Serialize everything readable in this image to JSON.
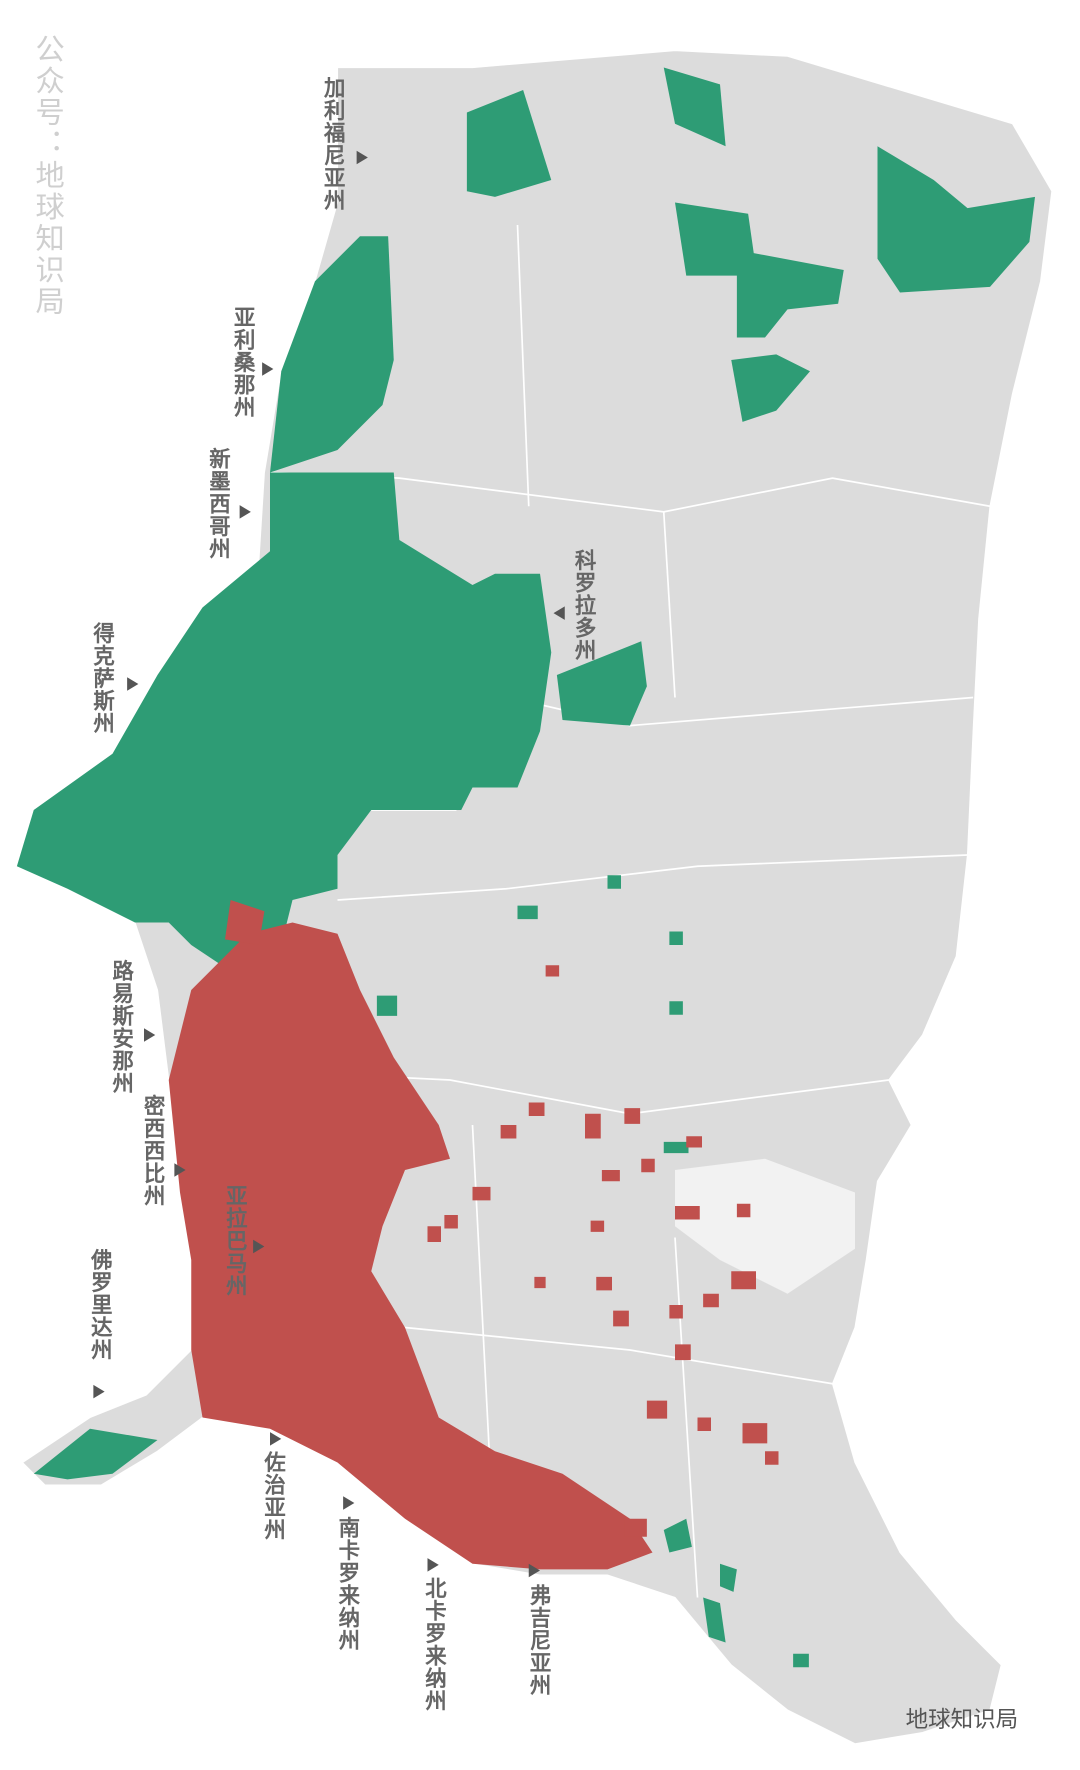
{
  "watermark": "公众号：地球知识局",
  "labels": [
    "加利福尼亚州",
    "亚利桑那州",
    "新墨西哥州",
    "得克萨斯州",
    "科罗拉多州",
    "路易斯安那州",
    "密西西比州",
    "亚拉巴马州",
    "佛罗里达州",
    "佐治亚州",
    "南卡罗来纳州",
    "北卡罗来纳州",
    "弗吉尼亚州"
  ],
  "logo": "地球知识局"
}
